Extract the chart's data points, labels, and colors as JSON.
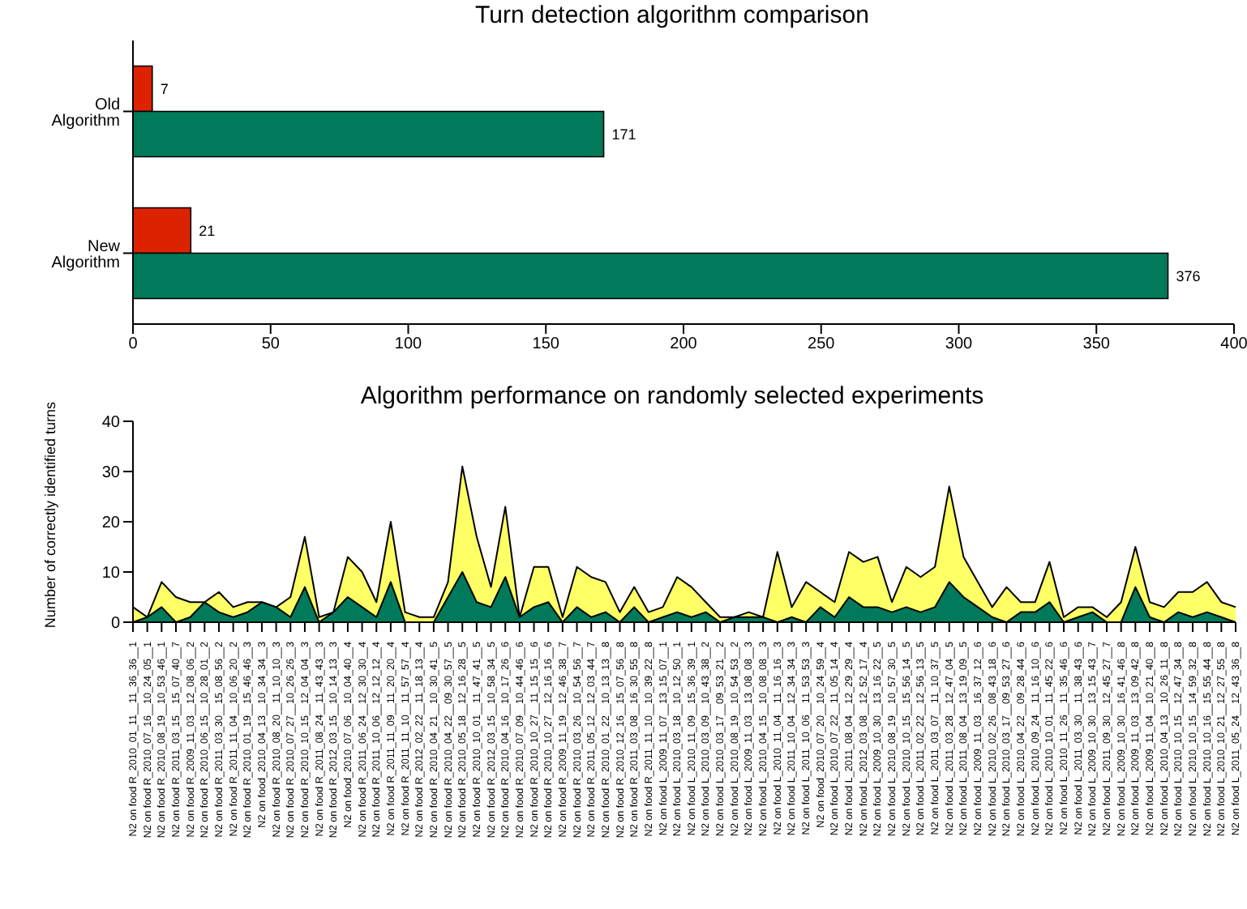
{
  "chart_data": [
    {
      "type": "bar",
      "title": "Turn detection algorithm comparison",
      "orientation": "horizontal",
      "categories": [
        "Old Algorithm",
        "New Algorithm"
      ],
      "series": [
        {
          "color": "#dd2200",
          "values": [
            7,
            21
          ]
        },
        {
          "color": "#007a5a",
          "values": [
            171,
            376
          ]
        }
      ],
      "xlim": [
        0,
        400
      ],
      "xticks": [
        0,
        50,
        100,
        150,
        200,
        250,
        300,
        350,
        400
      ],
      "data_labels": true
    },
    {
      "type": "area",
      "title": "Algorithm performance on randomly selected experiments",
      "ylabel": "Number of correctly identified turns",
      "categories": [
        "N2 on food R_2010_01_11__11_36_36__1",
        "N2 on food R_2010_07_16__10_24_05__1",
        "N2 on food R_2010_08_19__10_53_46__1",
        "N2 on food R_2011_03_15__15_07_40__7",
        "N2 on food R_2009_11_03__12_08_06__2",
        "N2 on food R_2010_06_15__10_28_01__2",
        "N2 on food R_2011_03_30__15_08_56__2",
        "N2 on food R_2011_11_04__10_06_20__2",
        "N2 on food R_2010_01_19__15_46_46__3",
        "N2 on food_2010_04_13__10_34_34__3",
        "N2 on food R_2010_08_20__11_10_10__3",
        "N2 on food R_2010_07_27__10_26_26__3",
        "N2 on food R_2010_10_15__12_04_04__3",
        "N2 on food R_2011_08_24__11_43_43__3",
        "N2 on food R_2012_03_15__10_14_13__3",
        "N2 on food_2010_07_06__10_04_40__4",
        "N2 on food R_2011_06_24__12_30_30__4",
        "N2 on food R_2011_10_06__12_12_12__4",
        "N2 on food R_2011_11_09__11_20_20__4",
        "N2 on food R_2011_11_10__11_57_57__4",
        "N2 on food R_2012_02_22__11_18_13__4",
        "N2 on food R_2010_04_21__10_30_41__5",
        "N2 on food R_2010_04_22__09_30_57__5",
        "N2 on food R_2010_05_18__12_16_28__5",
        "N2 on food R_2010_10_01__11_47_41__5",
        "N2 on food R_2012_03_15__10_58_34__5",
        "N2 on food R_2010_04_16__10_17_26__6",
        "N2 on food R_2010_07_09__10_44_46__6",
        "N2 on food R_2010_10_27__11_15_15__6",
        "N2 on food R_2010_10_27__12_16_16__6",
        "N2 on food R_2009_11_19__12_46_38__7",
        "N2 on food R_2010_03_26__10_54_56__7",
        "N2 on food R_2011_05_12__12_03_44__7",
        "N2 on food R_2010_01_22__10_13_13__8",
        "N2 on food R_2010_12_16__15_07_56__8",
        "N2 on food R_2011_03_08__16_30_55__8",
        "N2 on food R_2011_11_10__10_39_22__8",
        "N2 on food L_2009_11_07__13_15_07__1",
        "N2 on food L_2010_03_18__10_12_50__1",
        "N2 on food L_2010_11_09__15_36_39__1",
        "N2 on food L_2010_03_09__10_43_38__2",
        "N2 on food L_2010_03_17__09_53_21__2",
        "N2 on food L_2010_08_19__10_54_53__2",
        "N2 on food L_2009_11_03__13_08_08__3",
        "N2 on food L_2010_04_15__10_08_08__3",
        "N2 on food L_2010_11_04__11_16_16__3",
        "N2 on food L_2011_10_04__12_34_34__3",
        "N2 on food L_2011_10_06__11_53_53__3",
        "N2 on food_2010_07_20__10_24_59__4",
        "N2 on food L_2010_07_22__11_05_14__4",
        "N2 on food L_2011_08_04__12_29_29__4",
        "N2 on food L_2012_03_08__12_52_17__4",
        "N2 on food L_2009_10_30__13_16_22__5",
        "N2 on food L_2010_08_19__10_57_30__5",
        "N2 on food L_2010_10_15__15_56_14__5",
        "N2 on food L_2011_02_22__12_56_13__5",
        "N2 on food L_2011_03_07__11_10_37__5",
        "N2 on food L_2011_03_28__12_47_04__5",
        "N2 on food L_2011_08_04__13_19_09__5",
        "N2 on food L_2009_11_03__16_37_12__6",
        "N2 on food L_2010_02_26__08_43_18__6",
        "N2 on food L_2010_03_17__09_53_27__6",
        "N2 on food L_2010_04_22__09_28_44__6",
        "N2 on food L_2010_09_24__11_16_10__6",
        "N2 on food L_2010_10_01__11_45_22__6",
        "N2 on food L_2010_11_26__11_35_46__6",
        "N2 on food L_2011_03_30__11_38_43__6",
        "N2 on food L_2009_10_30__13_15_43__7",
        "N2 on food L_2011_09_30__12_45_27__7",
        "N2 on food L_2009_10_30__16_41_46__8",
        "N2 on food L_2009_11_03__13_09_42__8",
        "N2 on food L_2009_11_04__10_21_40__8",
        "N2 on food L_2010_04_13__10_26_11__8",
        "N2 on food L_2010_10_15__12_47_34__8",
        "N2 on food L_2010_10_15__14_59_32__8",
        "N2 on food L_2010_10_16__15_55_44__8",
        "N2 on food L_2010_10_21__12_27_55__8",
        "N2 on food L_2011_05_24__12_43_36__8"
      ],
      "series": [
        {
          "color": "#ffff66",
          "values": [
            3,
            1,
            8,
            5,
            4,
            4,
            6,
            3,
            4,
            4,
            3,
            5,
            17,
            1,
            2,
            13,
            10,
            4,
            20,
            2,
            1,
            1,
            8,
            31,
            17,
            7,
            23,
            1,
            11,
            11,
            1,
            11,
            9,
            8,
            2,
            7,
            2,
            3,
            9,
            7,
            4,
            1,
            1,
            2,
            1,
            14,
            3,
            8,
            6,
            4,
            14,
            12,
            13,
            4,
            11,
            9,
            11,
            27,
            13,
            8,
            3,
            7,
            4,
            4,
            12,
            1,
            3,
            3,
            1,
            4,
            15,
            4,
            3,
            6,
            6,
            8,
            4,
            3
          ]
        },
        {
          "color": "#007a5a",
          "values": [
            0,
            1,
            3,
            0,
            1,
            4,
            2,
            1,
            2,
            4,
            3,
            1,
            7,
            0,
            2,
            5,
            3,
            1,
            8,
            0,
            0,
            0,
            5,
            10,
            4,
            3,
            9,
            1,
            3,
            4,
            0,
            3,
            1,
            2,
            0,
            3,
            0,
            1,
            2,
            1,
            2,
            0,
            1,
            1,
            1,
            0,
            1,
            0,
            3,
            1,
            5,
            3,
            3,
            2,
            3,
            2,
            3,
            8,
            5,
            3,
            1,
            0,
            2,
            2,
            4,
            0,
            1,
            2,
            0,
            0,
            7,
            1,
            0,
            2,
            1,
            2,
            1,
            0
          ]
        }
      ],
      "ylim": [
        0,
        40
      ],
      "yticks": [
        0,
        10,
        20,
        30,
        40
      ]
    }
  ]
}
